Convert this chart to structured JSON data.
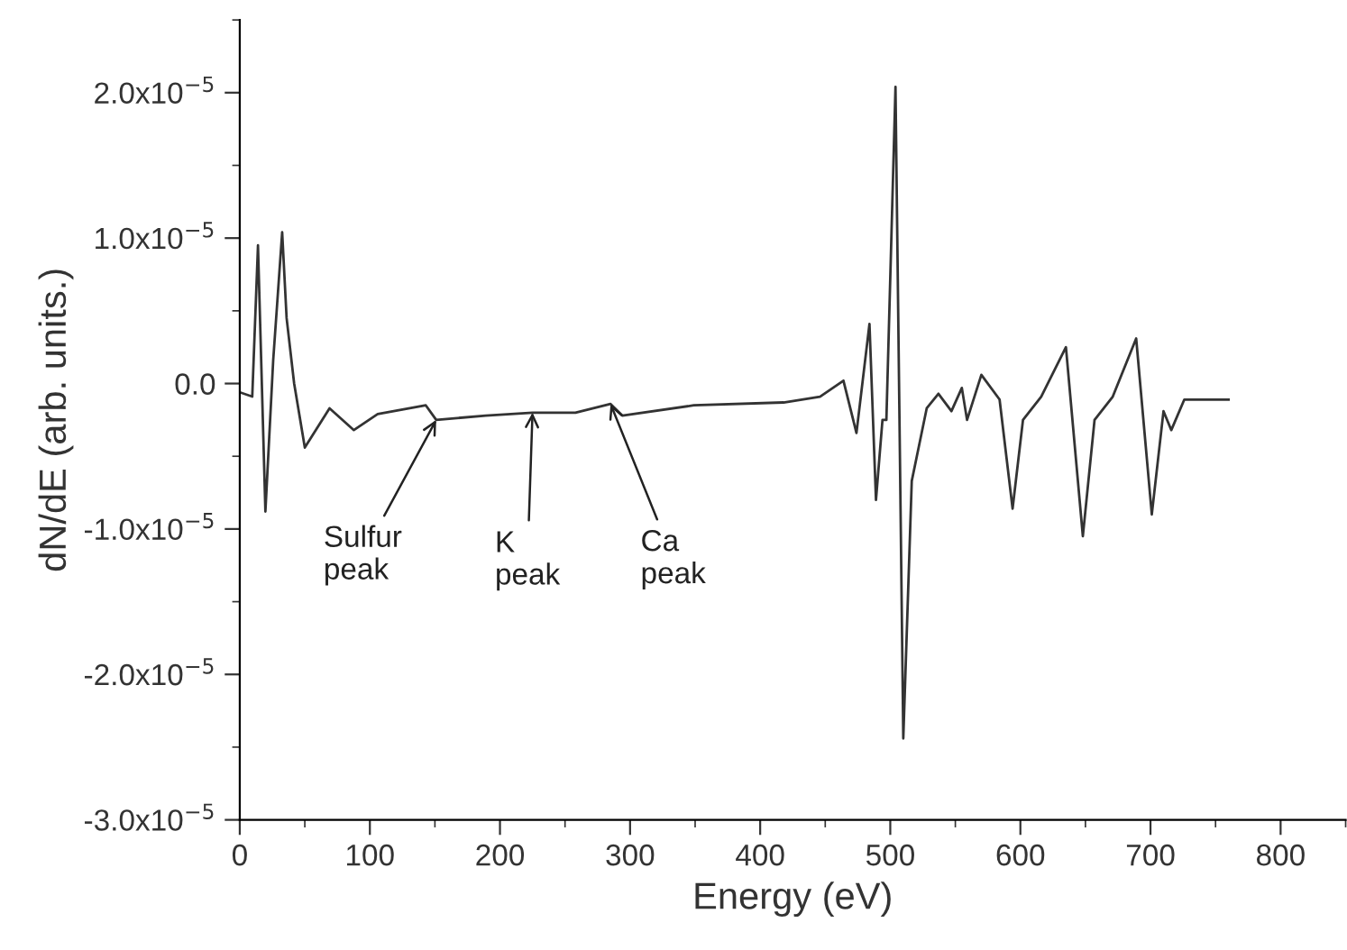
{
  "chart_data": {
    "type": "line",
    "xlabel": "Energy (eV)",
    "ylabel": "dN/dE (arb. units.)",
    "xlim": [
      0,
      845
    ],
    "ylim": [
      -3e-05,
      2.5e-05
    ],
    "xticks": [
      0,
      100,
      200,
      300,
      400,
      500,
      600,
      700,
      800
    ],
    "yticks": [
      {
        "value": -3e-05,
        "label": "-3.0x10$^{−5}$"
      },
      {
        "value": -2e-05,
        "label": "-2.0x10$^{−5}$"
      },
      {
        "value": -1e-05,
        "label": "-1.0x10$^{−5}$"
      },
      {
        "value": 0,
        "label": "0.0"
      },
      {
        "value": 1e-05,
        "label": "1.0x10$^{−5}$"
      },
      {
        "value": 2e-05,
        "label": "2.0x10$^{−5}$"
      }
    ],
    "grid": false,
    "legend": false,
    "marker": "none",
    "line_style": "solid",
    "series": [
      {
        "color": "#333333",
        "x": [
          0,
          9.6,
          14,
          19.7,
          25.7,
          32.6,
          36,
          41.8,
          50,
          69,
          87.7,
          106,
          143,
          151,
          189,
          225,
          258,
          285,
          294,
          349,
          418,
          446,
          464,
          474,
          484,
          489,
          494,
          497,
          504,
          510,
          516.5,
          528,
          537,
          547,
          555,
          559,
          570,
          584,
          594,
          602,
          616,
          635,
          648,
          657,
          671,
          689,
          701,
          710,
          716,
          726,
          760
        ],
        "values": [
          -6e-07,
          -9e-07,
          9.5e-06,
          -8.8e-06,
          1.6e-06,
          1.04e-05,
          4.5e-06,
          0.0,
          -4.4e-06,
          -1.7e-06,
          -3.2e-06,
          -2.1e-06,
          -1.5e-06,
          -2.5e-06,
          -2.2e-06,
          -2e-06,
          -2e-06,
          -1.4e-06,
          -2.2e-06,
          -1.5e-06,
          -1.3e-06,
          -9e-07,
          2e-07,
          -3.4e-06,
          4.1e-06,
          -8e-06,
          -2.5e-06,
          -2.5e-06,
          2.04e-05,
          -2.44e-05,
          -6.7e-06,
          -1.7e-06,
          -7e-07,
          -1.9e-06,
          -3e-07,
          -2.5e-06,
          6e-07,
          -1.1e-06,
          -8.6e-06,
          -2.5e-06,
          -9e-07,
          2.5e-06,
          -1.05e-05,
          -2.5e-06,
          -9e-07,
          3.1e-06,
          -9e-06,
          -1.9e-06,
          -3.2e-06,
          -1.1e-06,
          -1.1e-06
        ]
      }
    ],
    "annotations": [
      {
        "text": "Sulfur\npeak",
        "x": 151,
        "y": -2.5e-06
      },
      {
        "text": "K\npeak",
        "x": 225,
        "y": -2e-06
      },
      {
        "text": "Ca\npeak",
        "x": 285,
        "y": -1.4e-06
      }
    ]
  }
}
